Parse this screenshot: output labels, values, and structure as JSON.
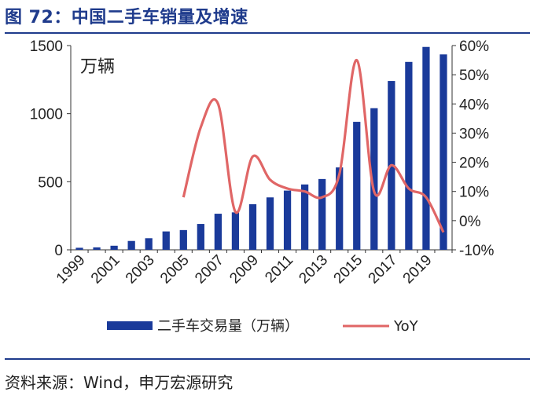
{
  "figure": {
    "title": "图 72：中国二手车销量及增速",
    "source": "资料来源：Wind，申万宏源研究"
  },
  "colors": {
    "bar": "#1a3a9a",
    "line": "#e06666",
    "title": "#1f3b8c"
  },
  "chart_data": {
    "type": "bar",
    "unit_label": "万辆",
    "categories": [
      "1999",
      "2000",
      "2001",
      "2002",
      "2003",
      "2004",
      "2005",
      "2006",
      "2007",
      "2008",
      "2009",
      "2010",
      "2011",
      "2012",
      "2013",
      "2014",
      "2015",
      "2016",
      "2017",
      "2018",
      "2019",
      "2020"
    ],
    "x_tick_labels": [
      "1999",
      "2001",
      "2003",
      "2005",
      "2007",
      "2009",
      "2011",
      "2013",
      "2015",
      "2017",
      "2019"
    ],
    "left_axis": {
      "min": 0,
      "max": 1500,
      "ticks": [
        "0",
        "500",
        "1000",
        "1500"
      ]
    },
    "right_axis": {
      "min": -10,
      "max": 60,
      "ticks": [
        "-10%",
        "0%",
        "10%",
        "20%",
        "30%",
        "40%",
        "50%",
        "60%"
      ]
    },
    "series": [
      {
        "name": "二手车交易量（万辆）",
        "type": "bar",
        "axis": "left",
        "values": [
          15,
          18,
          30,
          65,
          85,
          135,
          145,
          190,
          265,
          275,
          335,
          385,
          435,
          480,
          520,
          605,
          940,
          1040,
          1240,
          1380,
          1490,
          1435
        ]
      },
      {
        "name": "YoY",
        "type": "line",
        "axis": "right",
        "values": [
          null,
          null,
          null,
          null,
          null,
          null,
          8,
          32,
          40,
          3,
          22,
          14,
          11,
          10,
          8,
          16,
          55,
          10,
          19,
          11,
          8,
          -4
        ]
      }
    ],
    "grid": false,
    "legend_position": "bottom"
  }
}
